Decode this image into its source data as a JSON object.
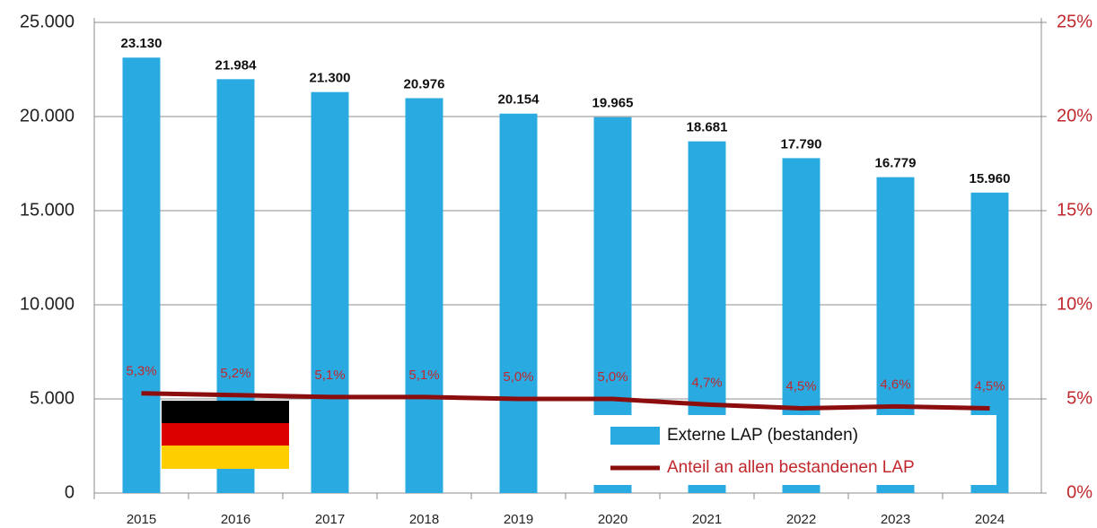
{
  "chart_data": {
    "type": "bar",
    "categories": [
      "2015",
      "2016",
      "2017",
      "2018",
      "2019",
      "2020",
      "2021",
      "2022",
      "2023",
      "2024"
    ],
    "series": [
      {
        "name": "Externe LAP (bestanden)",
        "type": "bar",
        "color": "#29abe2",
        "values": [
          23130,
          21984,
          21300,
          20976,
          20154,
          19965,
          18681,
          17790,
          16779,
          15960
        ],
        "value_labels": [
          "23.130",
          "21.984",
          "21.300",
          "20.976",
          "20.154",
          "19.965",
          "18.681",
          "17.790",
          "16.779",
          "15.960"
        ]
      },
      {
        "name": "Anteil an allen bestandenen LAP",
        "type": "line",
        "axis": "y2",
        "color": "#8b0d0d",
        "values": [
          5.3,
          5.2,
          5.1,
          5.1,
          5.0,
          5.0,
          4.7,
          4.5,
          4.6,
          4.5
        ],
        "value_labels": [
          "5,3%",
          "5,2%",
          "5,1%",
          "5,1%",
          "5,0%",
          "5,0%",
          "4,7%",
          "4,5%",
          "4,6%",
          "4,5%"
        ]
      }
    ],
    "ylim": [
      0,
      25000
    ],
    "yticks": [
      0,
      {
        "value": 5000,
        "label": "5.000"
      },
      {
        "value": 10000,
        "label": "10.000"
      },
      {
        "value": 15000,
        "label": "15.000"
      },
      {
        "value": 20000,
        "label": "20.000"
      },
      {
        "value": 25000,
        "label": "25.000"
      }
    ],
    "y2lim": [
      0,
      25
    ],
    "y2ticks": [
      {
        "value": 0,
        "label": "0%"
      },
      {
        "value": 5,
        "label": "5%"
      },
      {
        "value": 10,
        "label": "10%"
      },
      {
        "value": 15,
        "label": "15%"
      },
      {
        "value": 20,
        "label": "20%"
      },
      {
        "value": 25,
        "label": "25%"
      }
    ],
    "grid": true,
    "legend": "lower right"
  }
}
